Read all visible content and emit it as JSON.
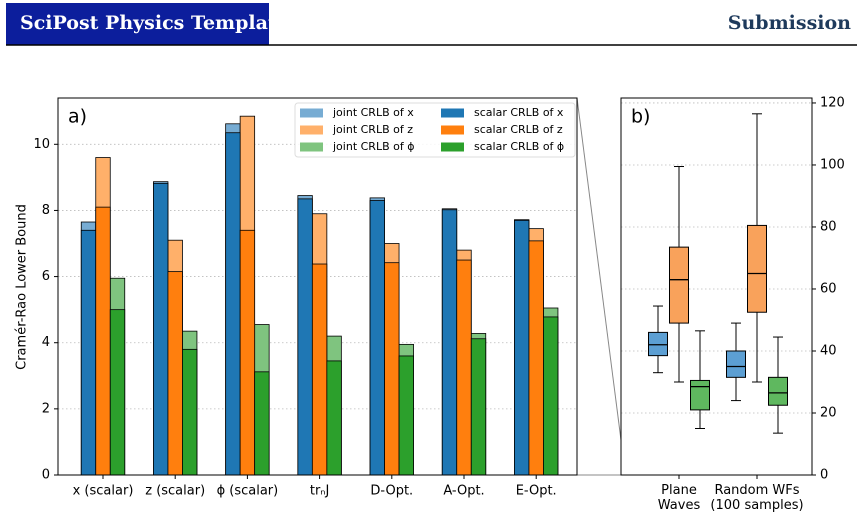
{
  "header": {
    "title": "SciPost Physics Template",
    "label": "Submission"
  },
  "chart_data": [
    {
      "type": "bar",
      "panel": "a)",
      "y_label": "Cramér-Rao Lower Bound",
      "categories": [
        "x (scalar)",
        "z (scalar)",
        "ϕ (scalar)",
        "trₙJ",
        "D-Opt.",
        "A-Opt.",
        "E-Opt."
      ],
      "ylim": [
        0,
        11.4
      ],
      "yticks": [
        0,
        2,
        4,
        6,
        8,
        10
      ],
      "grid": true,
      "legend": "upper right",
      "series": [
        {
          "name": "joint CRLB of x",
          "color": "#77acd3",
          "values": [
            7.65,
            8.87,
            10.62,
            8.45,
            8.38,
            8.05,
            7.72
          ]
        },
        {
          "name": "joint CRLB of z",
          "color": "#ffb06a",
          "values": [
            9.6,
            7.1,
            10.85,
            7.9,
            7.0,
            6.8,
            7.45
          ]
        },
        {
          "name": "joint CRLB of ϕ",
          "color": "#7fc47f",
          "values": [
            5.95,
            4.35,
            4.55,
            4.2,
            3.95,
            4.28,
            5.05
          ]
        },
        {
          "name": "scalar CRLB of x",
          "color": "#1f77b4",
          "values": [
            7.4,
            8.82,
            10.35,
            8.35,
            8.3,
            8.02,
            7.7
          ]
        },
        {
          "name": "scalar CRLB of z",
          "color": "#ff7f0e",
          "values": [
            8.1,
            6.15,
            7.4,
            6.38,
            6.42,
            6.5,
            7.08
          ]
        },
        {
          "name": "scalar CRLB of ϕ",
          "color": "#2ca02c",
          "values": [
            5.0,
            3.8,
            3.12,
            3.45,
            3.6,
            4.12,
            4.78
          ]
        }
      ]
    },
    {
      "type": "box",
      "panel": "b)",
      "categories": [
        "Plane Waves",
        "Random WFs (100 samples)"
      ],
      "ylim": [
        0,
        121.6
      ],
      "yticks": [
        0,
        20,
        40,
        60,
        80,
        100,
        120
      ],
      "grid": true,
      "series": [
        {
          "color": "#5c9fd3",
          "values": [
            [
              33,
              38.5,
              42,
              46,
              54.5
            ],
            [
              24,
              31.5,
              35,
              40,
              49
            ]
          ]
        },
        {
          "color": "#f9a25b",
          "values": [
            [
              30,
              49,
              63,
              73.5,
              99.5
            ],
            [
              30,
              52.5,
              65,
              80.5,
              116.5
            ]
          ]
        },
        {
          "color": "#5fb85f",
          "values": [
            [
              15,
              21,
              28.5,
              30.5,
              46.5
            ],
            [
              13.5,
              22.5,
              26.5,
              31.5,
              44.5
            ]
          ]
        }
      ]
    }
  ]
}
